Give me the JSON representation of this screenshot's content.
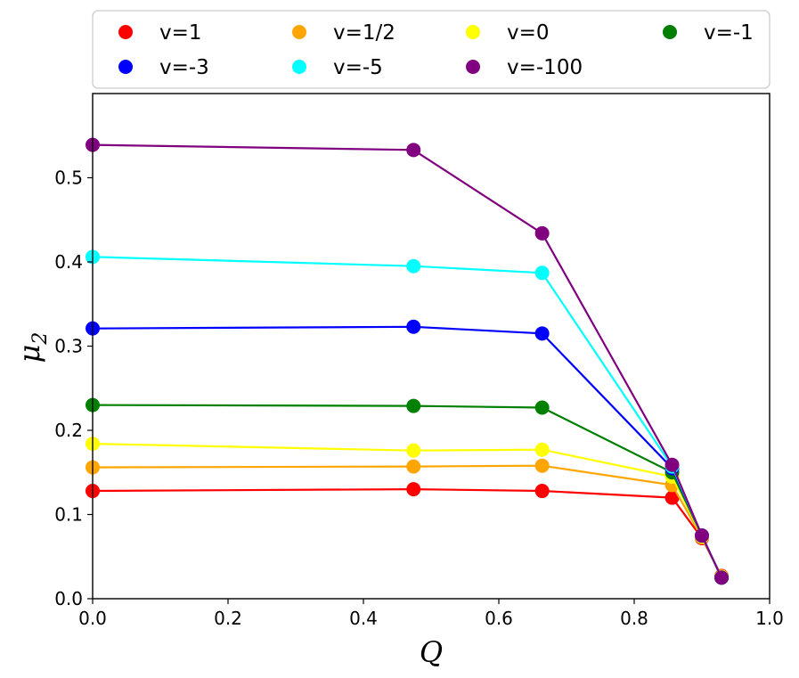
{
  "chart_data": {
    "type": "line",
    "xlabel": "Q",
    "ylabel_base": "μ",
    "ylabel_sub": "2",
    "xlim": [
      0.0,
      1.0
    ],
    "ylim": [
      0.0,
      0.6
    ],
    "x_ticks": [
      0.0,
      0.2,
      0.4,
      0.6,
      0.8,
      1.0
    ],
    "x_tick_labels": [
      "0.0",
      "0.2",
      "0.4",
      "0.6",
      "0.8",
      "1.0"
    ],
    "y_ticks": [
      0.0,
      0.1,
      0.2,
      0.3,
      0.4,
      0.5
    ],
    "y_tick_labels": [
      "0.0",
      "0.1",
      "0.2",
      "0.3",
      "0.4",
      "0.5"
    ],
    "grid": false,
    "legend_position": "top, outside plot",
    "x": [
      0.0,
      0.474,
      0.664,
      0.856,
      0.9,
      0.929
    ],
    "series": [
      {
        "name": "v=1",
        "color": "#ff0000",
        "values": [
          0.128,
          0.13,
          0.128,
          0.12,
          0.072,
          0.027
        ]
      },
      {
        "name": "v=1/2",
        "color": "#ffa500",
        "values": [
          0.156,
          0.157,
          0.158,
          0.135,
          0.073,
          0.026
        ]
      },
      {
        "name": "v=0",
        "color": "#ffff00",
        "values": [
          0.184,
          0.176,
          0.177,
          0.145,
          0.074,
          0.026
        ]
      },
      {
        "name": "v=-1",
        "color": "#008000",
        "values": [
          0.23,
          0.229,
          0.227,
          0.15,
          0.075,
          0.025
        ]
      },
      {
        "name": "v=-3",
        "color": "#0000ff",
        "values": [
          0.321,
          0.323,
          0.315,
          0.155,
          0.075,
          0.025
        ]
      },
      {
        "name": "v=-5",
        "color": "#00ffff",
        "values": [
          0.406,
          0.395,
          0.387,
          0.157,
          0.075,
          0.025
        ]
      },
      {
        "name": "v=-100",
        "color": "#800080",
        "values": [
          0.539,
          0.533,
          0.434,
          0.159,
          0.075,
          0.025
        ]
      }
    ],
    "legend_order": [
      "v=1",
      "v=1/2",
      "v=0",
      "v=-1",
      "v=-3",
      "v=-5",
      "v=-100"
    ]
  }
}
